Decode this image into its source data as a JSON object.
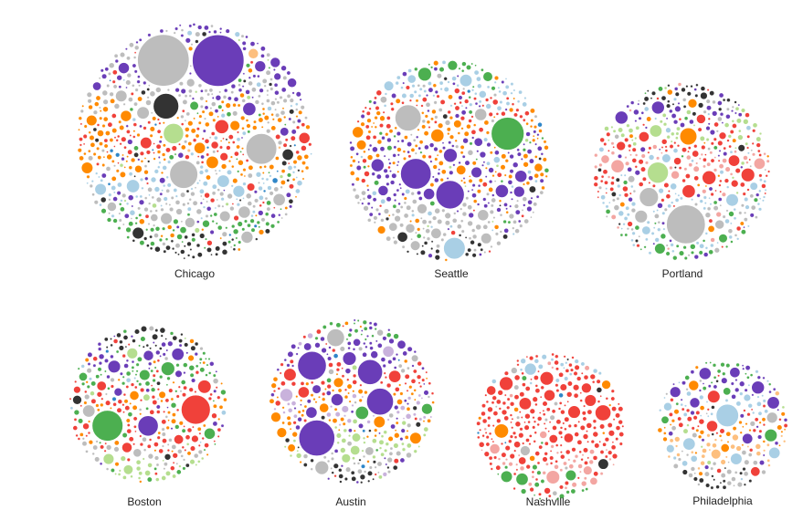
{
  "chart_data": {
    "type": "packed-bubble",
    "title": "",
    "legend": "none",
    "grid": false,
    "palette": {
      "purple": "#6a3db8",
      "green": "#4caf50",
      "light_green": "#b5de8f",
      "gray": "#bdbdbd",
      "dark": "#333333",
      "light_blue": "#a9cfe5",
      "blue": "#2f86c8",
      "orange": "#ff8a00",
      "peach": "#fdbf7e",
      "red": "#f0413a",
      "pink": "#f3a6a2",
      "lavender": "#c9b2dc"
    },
    "cities": [
      {
        "name": "Chicago",
        "composition": {
          "purple": 0.22,
          "gray": 0.2,
          "orange": 0.13,
          "light_blue": 0.12,
          "green": 0.1,
          "red": 0.08,
          "dark": 0.05,
          "light_green": 0.04,
          "blue": 0.04,
          "peach": 0.02
        },
        "layers": [
          "purple",
          "gray",
          "purple",
          "gray",
          "orange",
          "red",
          "orange",
          "light_blue",
          "gray",
          "green",
          "dark"
        ],
        "large_bubbles": [
          {
            "color": "purple",
            "size": 1.0
          },
          {
            "color": "gray",
            "size": 1.0
          },
          {
            "color": "gray",
            "size": 0.6
          },
          {
            "color": "gray",
            "size": 0.55
          },
          {
            "color": "dark",
            "size": 0.5
          },
          {
            "color": "light_green",
            "size": 0.4
          }
        ]
      },
      {
        "name": "Seattle",
        "composition": {
          "purple": 0.25,
          "orange": 0.18,
          "gray": 0.18,
          "light_blue": 0.12,
          "green": 0.1,
          "red": 0.08,
          "dark": 0.04,
          "light_green": 0.03,
          "blue": 0.02
        },
        "layers": [
          "green",
          "light_blue",
          "red",
          "orange",
          "purple",
          "orange",
          "purple",
          "gray",
          "gray",
          "dark"
        ],
        "large_bubbles": [
          {
            "color": "green",
            "size": 0.75
          },
          {
            "color": "purple",
            "size": 0.7
          },
          {
            "color": "purple",
            "size": 0.65
          },
          {
            "color": "gray",
            "size": 0.6
          },
          {
            "color": "light_blue",
            "size": 0.5
          }
        ]
      },
      {
        "name": "Portland",
        "composition": {
          "red": 0.2,
          "gray": 0.2,
          "light_blue": 0.15,
          "purple": 0.15,
          "green": 0.1,
          "orange": 0.08,
          "dark": 0.05,
          "pink": 0.04,
          "light_green": 0.03
        },
        "layers": [
          "dark",
          "purple",
          "light_green",
          "red",
          "pink",
          "red",
          "light_blue",
          "gray",
          "light_blue",
          "green"
        ],
        "large_bubbles": [
          {
            "color": "gray",
            "size": 1.0
          },
          {
            "color": "light_green",
            "size": 0.55
          },
          {
            "color": "gray",
            "size": 0.5
          },
          {
            "color": "orange",
            "size": 0.45
          }
        ]
      },
      {
        "name": "Boston",
        "composition": {
          "green": 0.2,
          "red": 0.2,
          "purple": 0.15,
          "orange": 0.12,
          "gray": 0.12,
          "light_blue": 0.08,
          "light_green": 0.05,
          "dark": 0.04,
          "blue": 0.04
        },
        "layers": [
          "dark",
          "purple",
          "green",
          "red",
          "orange",
          "red",
          "gray",
          "light_green"
        ],
        "large_bubbles": [
          {
            "color": "green",
            "size": 0.9
          },
          {
            "color": "red",
            "size": 0.85
          },
          {
            "color": "purple",
            "size": 0.6
          }
        ]
      },
      {
        "name": "Austin",
        "composition": {
          "purple": 0.3,
          "orange": 0.18,
          "red": 0.15,
          "gray": 0.1,
          "green": 0.08,
          "light_green": 0.07,
          "lavender": 0.05,
          "dark": 0.04,
          "blue": 0.03
        },
        "layers": [
          "green",
          "purple",
          "purple",
          "red",
          "orange",
          "lavender",
          "orange",
          "light_green",
          "gray",
          "dark"
        ],
        "large_bubbles": [
          {
            "color": "purple",
            "size": 1.0
          },
          {
            "color": "purple",
            "size": 0.8
          },
          {
            "color": "purple",
            "size": 0.75
          },
          {
            "color": "purple",
            "size": 0.7
          },
          {
            "color": "gray",
            "size": 0.5
          }
        ]
      },
      {
        "name": "Nashville",
        "composition": {
          "red": 0.72,
          "pink": 0.1,
          "orange": 0.05,
          "gray": 0.05,
          "green": 0.04,
          "dark": 0.02,
          "blue": 0.02
        },
        "layers": [
          "light_blue",
          "red",
          "red",
          "red",
          "red",
          "pink",
          "green"
        ],
        "large_bubbles": [
          {
            "color": "red",
            "size": 0.5
          },
          {
            "color": "orange",
            "size": 0.45
          }
        ]
      },
      {
        "name": "Philadelphia",
        "composition": {
          "purple": 0.18,
          "orange": 0.18,
          "red": 0.15,
          "gray": 0.14,
          "light_blue": 0.12,
          "green": 0.1,
          "dark": 0.06,
          "light_green": 0.04,
          "peach": 0.03
        },
        "layers": [
          "green",
          "purple",
          "light_blue",
          "red",
          "orange",
          "peach",
          "gray",
          "dark"
        ],
        "large_bubbles": [
          {
            "color": "light_blue",
            "size": 0.8
          },
          {
            "color": "purple",
            "size": 0.45
          },
          {
            "color": "gray",
            "size": 0.4
          }
        ]
      }
    ]
  }
}
